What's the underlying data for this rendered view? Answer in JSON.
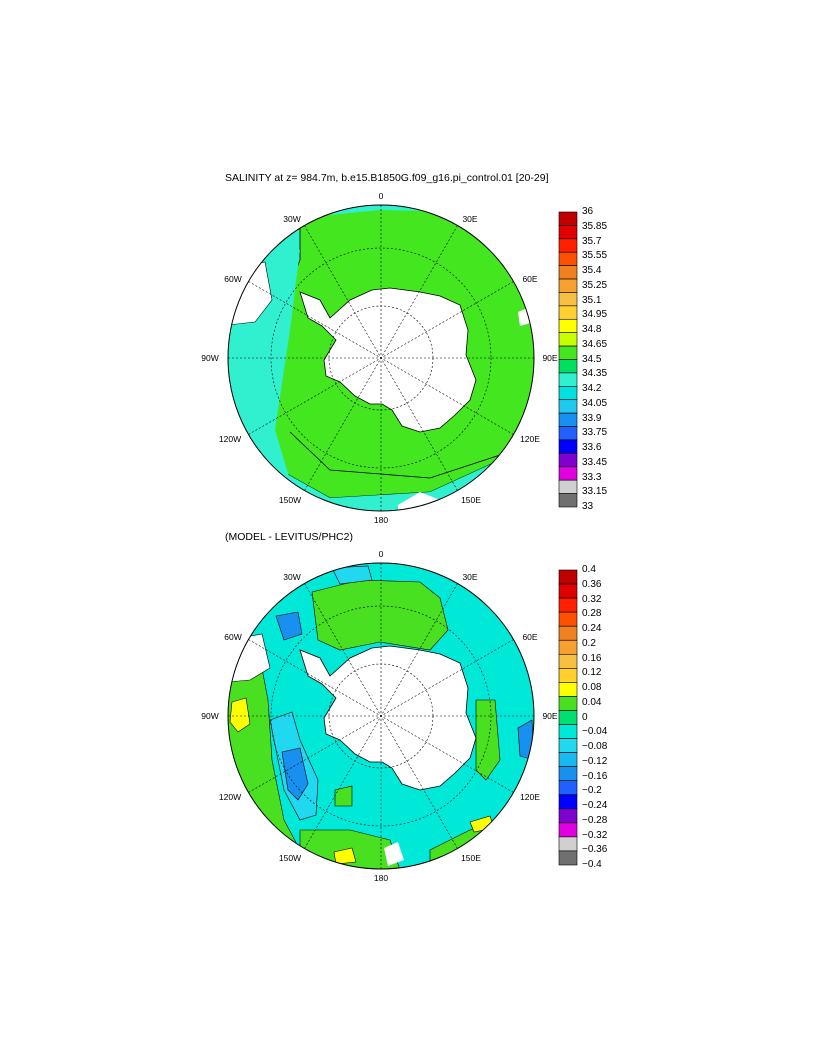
{
  "panels": [
    {
      "title": "SALINITY at z= 984.7m, b.e15.B1850G.f09_g16.pi_control.01 [20-29]",
      "lon_labels": [
        "0",
        "30E",
        "60E",
        "90E",
        "120E",
        "150E",
        "180",
        "150W",
        "120W",
        "90W",
        "60W",
        "30W"
      ],
      "colorbar_labels": [
        "36",
        "35.85",
        "35.7",
        "35.55",
        "35.4",
        "35.25",
        "35.1",
        "34.95",
        "34.8",
        "34.65",
        "34.5",
        "34.35",
        "34.2",
        "34.05",
        "33.9",
        "33.75",
        "33.6",
        "33.45",
        "33.3",
        "33.15",
        "33"
      ],
      "colorbar_colors": [
        "#c00000",
        "#e00000",
        "#ff2000",
        "#ff5000",
        "#f08020",
        "#f8a030",
        "#f8c040",
        "#ffd030",
        "#ffff00",
        "#c8ff00",
        "#44e620",
        "#00e060",
        "#30f0d0",
        "#00e0e0",
        "#20c8f0",
        "#1890f0",
        "#2060ff",
        "#0000ff",
        "#8000d0",
        "#e000e0",
        "#d0d0d0",
        "#707070"
      ]
    },
    {
      "title": "(MODEL - LEVITUS/PHC2)",
      "lon_labels": [
        "0",
        "30E",
        "60E",
        "90E",
        "120E",
        "150E",
        "180",
        "150W",
        "120W",
        "90W",
        "60W",
        "30W"
      ],
      "colorbar_labels": [
        "0.4",
        "0.36",
        "0.32",
        "0.28",
        "0.24",
        "0.2",
        "0.16",
        "0.12",
        "0.08",
        "0.04",
        "0",
        "−0.04",
        "−0.08",
        "−0.12",
        "−0.16",
        "−0.2",
        "−0.24",
        "−0.28",
        "−0.32",
        "−0.36",
        "−0.4"
      ],
      "colorbar_colors": [
        "#c00000",
        "#e00000",
        "#ff2000",
        "#ff5000",
        "#f08020",
        "#f8a030",
        "#f8c040",
        "#ffd030",
        "#ffff00",
        "#48e020",
        "#00e070",
        "#00e8d8",
        "#20d8f0",
        "#18b8f0",
        "#1890f0",
        "#2060ff",
        "#0000ff",
        "#8000d0",
        "#e000e0",
        "#d0d0d0",
        "#707070"
      ]
    }
  ]
}
